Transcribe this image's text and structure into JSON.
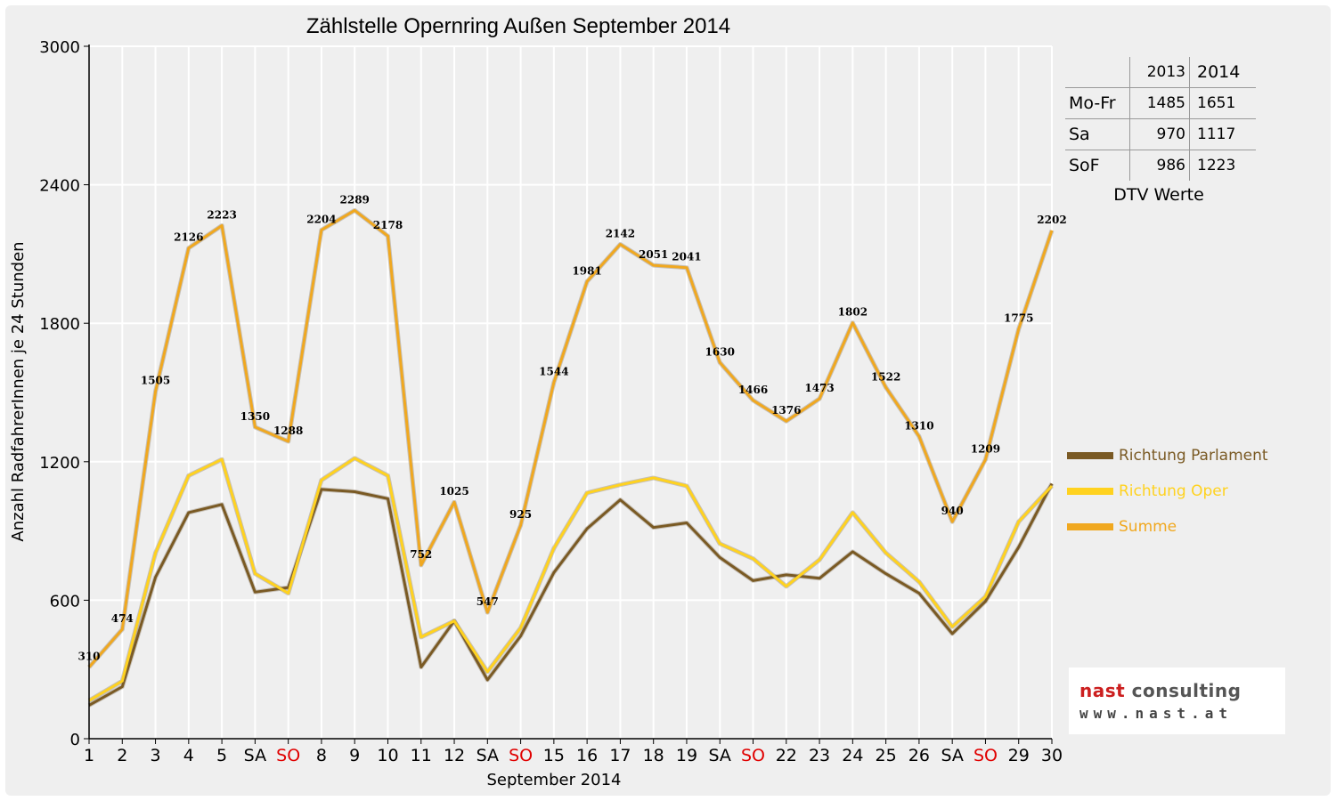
{
  "colors": {
    "parlament": "#7a5a24",
    "oper": "#ffd21f",
    "summe": "#f0a820",
    "weekend_sa": "#000000",
    "weekend_so": "#e00000",
    "grid": "#ffffff",
    "plot_bg": "#efefef"
  },
  "chart_data": {
    "type": "line",
    "title": "Zählstelle Opernring Außen September 2014",
    "xlabel": "September 2014",
    "ylabel": "Anzahl RadfahrerInnen je 24 Stunden",
    "ylim": [
      0,
      3000
    ],
    "yticks": [
      "0",
      "600",
      "1200",
      "1800",
      "2400",
      "3000"
    ],
    "grid": true,
    "legend_position": "right",
    "categories": [
      "1",
      "2",
      "3",
      "4",
      "5",
      "SA",
      "SO",
      "8",
      "9",
      "10",
      "11",
      "12",
      "SA",
      "SO",
      "15",
      "16",
      "17",
      "18",
      "19",
      "SA",
      "SO",
      "22",
      "23",
      "24",
      "25",
      "26",
      "SA",
      "SO",
      "29",
      "30"
    ],
    "sunday_indices": [
      6,
      13,
      20,
      27
    ],
    "series": [
      {
        "name": "Richtung Parlament",
        "color": "#7a5a24",
        "labels": false,
        "values": [
          145,
          225,
          700,
          980,
          1015,
          635,
          655,
          1080,
          1070,
          1040,
          310,
          510,
          255,
          445,
          720,
          910,
          1035,
          915,
          935,
          785,
          685,
          710,
          695,
          810,
          715,
          630,
          455,
          595,
          830,
          1105
        ]
      },
      {
        "name": "Richtung Oper",
        "color": "#ffd21f",
        "labels": false,
        "values": [
          165,
          250,
          805,
          1140,
          1210,
          715,
          630,
          1120,
          1215,
          1140,
          440,
          510,
          290,
          480,
          825,
          1065,
          1100,
          1130,
          1095,
          845,
          780,
          660,
          775,
          980,
          805,
          680,
          485,
          615,
          940,
          1095
        ]
      },
      {
        "name": "Summe",
        "color": "#f0a820",
        "labels": true,
        "values": [
          310,
          474,
          1505,
          2126,
          2223,
          1350,
          1288,
          2204,
          2289,
          2178,
          752,
          1025,
          547,
          925,
          1544,
          1981,
          2142,
          2051,
          2041,
          1630,
          1466,
          1376,
          1473,
          1802,
          1522,
          1310,
          940,
          1209,
          1775,
          2202
        ]
      }
    ]
  },
  "dtv_table": {
    "header": [
      "2013",
      "2014"
    ],
    "rows": [
      {
        "label": "Mo-Fr",
        "y2013": "1485",
        "y2014": "1651"
      },
      {
        "label": "Sa",
        "y2013": "970",
        "y2014": "1117"
      },
      {
        "label": "SoF",
        "y2013": "986",
        "y2014": "1223"
      }
    ],
    "caption": "DTV Werte"
  },
  "logo": {
    "name_part1": "nast",
    "name_part2": " consulting",
    "url": "www.nast.at"
  }
}
